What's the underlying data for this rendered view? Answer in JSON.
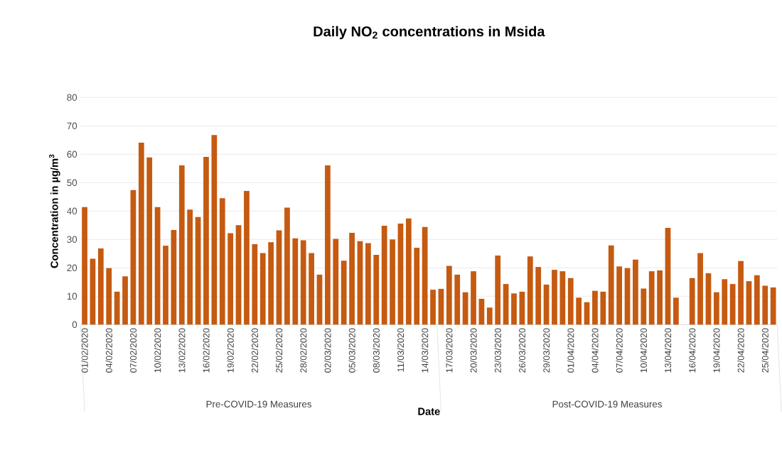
{
  "chart_data": {
    "type": "bar",
    "title": "Daily NO$_{2}$ concentrations in Msida",
    "xlabel": "Date",
    "ylabel": "Concentration in µg/m$^{3}$",
    "categories": [
      "01/02/2020",
      null,
      null,
      "04/02/2020",
      null,
      null,
      "07/02/2020",
      null,
      null,
      "10/02/2020",
      null,
      null,
      "13/02/2020",
      null,
      null,
      "16/02/2020",
      null,
      null,
      "19/02/2020",
      null,
      null,
      "22/02/2020",
      null,
      null,
      "25/02/2020",
      null,
      null,
      "28/02/2020",
      null,
      null,
      "02/03/2020",
      null,
      null,
      "05/03/2020",
      null,
      null,
      "08/03/2020",
      null,
      null,
      "11/03/2020",
      null,
      null,
      "14/03/2020",
      null,
      null,
      "17/03/2020",
      null,
      null,
      "20/03/2020",
      null,
      null,
      "23/03/2020",
      null,
      null,
      "26/03/2020",
      null,
      null,
      "29/03/2020",
      null,
      null,
      "01/04/2020",
      null,
      null,
      "04/04/2020",
      null,
      null,
      "07/04/2020",
      null,
      null,
      "10/04/2020",
      null,
      null,
      "13/04/2020",
      null,
      null,
      "16/04/2020",
      null,
      null,
      "19/04/2020",
      null,
      null,
      "22/04/2020",
      null,
      null,
      "25/04/2020",
      null
    ],
    "values": [
      41.4,
      23.2,
      26.8,
      19.9,
      11.6,
      17.0,
      47.4,
      64.1,
      58.9,
      41.4,
      27.8,
      33.3,
      56.1,
      40.5,
      37.9,
      59.1,
      66.8,
      44.5,
      32.2,
      35.0,
      47.1,
      28.3,
      25.2,
      29.0,
      33.2,
      41.2,
      30.4,
      29.7,
      25.2,
      17.6,
      56.1,
      30.2,
      22.5,
      32.3,
      29.4,
      28.7,
      24.6,
      34.8,
      30.0,
      35.6,
      37.4,
      27.1,
      34.4,
      12.3,
      12.6,
      20.7,
      17.6,
      11.4,
      18.8,
      9.1,
      6.0,
      24.3,
      14.3,
      11.0,
      11.6,
      24.0,
      20.3,
      14.1,
      19.3,
      18.8,
      16.4,
      9.5,
      7.9,
      11.9,
      11.6,
      27.9,
      20.5,
      19.9,
      22.9,
      12.7,
      18.8,
      19.1,
      34.1,
      9.5,
      null,
      16.4,
      25.2,
      18.1,
      11.4,
      16.0,
      14.3,
      22.4,
      15.3,
      17.4,
      13.7,
      13.1
    ],
    "color": "#c55a11",
    "ylim": [
      0,
      80
    ],
    "yticks": [
      0,
      10,
      20,
      30,
      40,
      50,
      60,
      70,
      80
    ],
    "grid": "y",
    "annotations": [
      "Pre-COVID-19 Measures",
      "Post-COVID-19 Measures"
    ]
  }
}
